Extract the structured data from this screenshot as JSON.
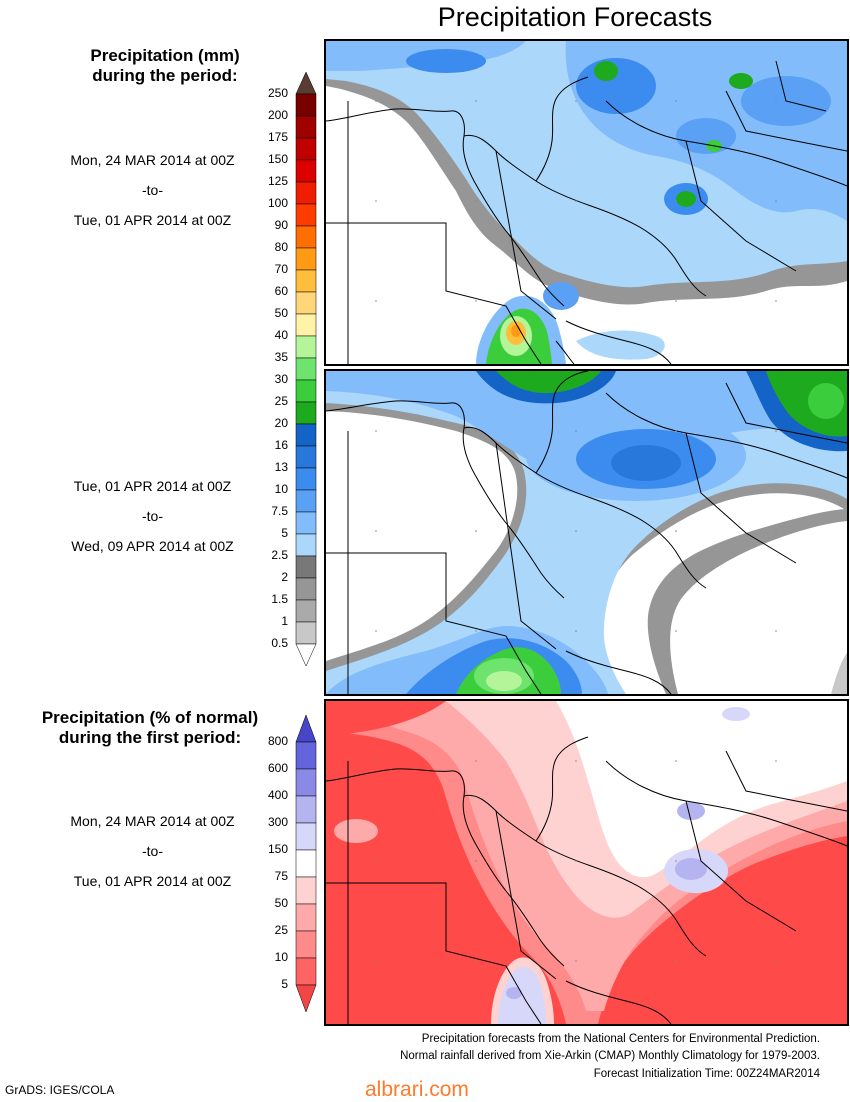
{
  "title": "Precipitation Forecasts",
  "legend_mm": {
    "title_line1": "Precipitation (mm)",
    "title_line2": "during the period:",
    "levels": [
      "250",
      "200",
      "175",
      "150",
      "125",
      "100",
      "90",
      "80",
      "70",
      "60",
      "50",
      "40",
      "35",
      "30",
      "25",
      "20",
      "16",
      "13",
      "10",
      "7.5",
      "5",
      "2.5",
      "2",
      "1.5",
      "1",
      "0.5"
    ],
    "colors": [
      "#7a0000",
      "#a00000",
      "#c00000",
      "#dc0000",
      "#f01e00",
      "#ff3c00",
      "#ff6e00",
      "#ff9a14",
      "#ffbe3c",
      "#ffd77a",
      "#fff3a8",
      "#b4f59a",
      "#6ee36e",
      "#3ccd3c",
      "#1eaa1e",
      "#1464c8",
      "#2878dc",
      "#3c8cf0",
      "#5aa0f5",
      "#82bcfa",
      "#aad7fa",
      "#787878",
      "#969696",
      "#aaaaaa",
      "#c8c8c8"
    ]
  },
  "period1": {
    "start": "Mon, 24 MAR 2014 at 00Z",
    "sep": "-to-",
    "end": "Tue, 01 APR 2014 at 00Z"
  },
  "period2": {
    "start": "Tue, 01 APR 2014 at 00Z",
    "sep": "-to-",
    "end": "Wed, 09 APR 2014 at 00Z"
  },
  "legend_pct": {
    "title_line1": "Precipitation (% of normal)",
    "title_line2": "during the first period:",
    "levels": [
      "800",
      "600",
      "400",
      "300",
      "150",
      "75",
      "50",
      "25",
      "10",
      "5"
    ],
    "colors": [
      "#6464dc",
      "#8a8ae6",
      "#b4b4f0",
      "#d7d7fa",
      "#ffffff",
      "#ffd2d2",
      "#ffaaaa",
      "#ff8a8a",
      "#ff6464"
    ],
    "top_arrow_color": "#4646c8",
    "bottom_arrow_color": "#f04646"
  },
  "period3": {
    "start": "Mon, 24 MAR 2014 at 00Z",
    "sep": "-to-",
    "end": "Tue, 01 APR 2014 at 00Z"
  },
  "footer": {
    "line1": "Precipitation forecasts from the National Centers for Environmental Prediction.",
    "line2": "Normal rainfall derived from Xie-Arkin (CMAP) Monthly Climatology for 1979-2003.",
    "line3": "Forecast Initialization Time: 00Z24MAR2014"
  },
  "credit": "GrADS: IGES/COLA",
  "watermark": "albrari.com"
}
